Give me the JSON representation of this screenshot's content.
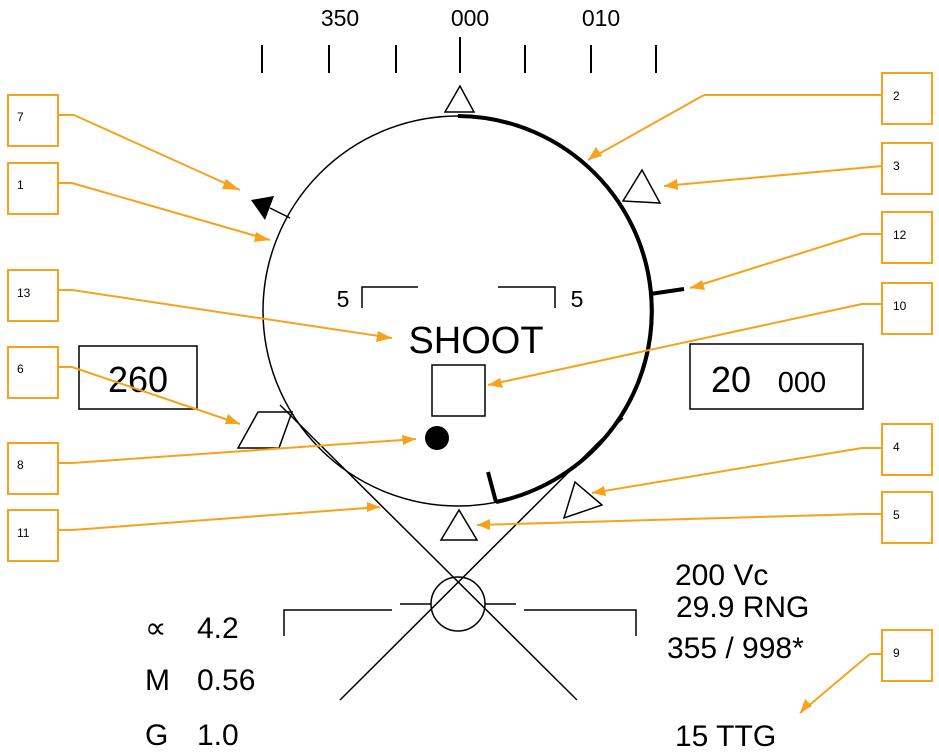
{
  "heading_scale": {
    "labels": [
      "350",
      "000",
      "010"
    ]
  },
  "airspeed_box": {
    "value": "260"
  },
  "altitude_box": {
    "value_major": "20",
    "value_minor": "000"
  },
  "shoot_cue": {
    "text": "SHOOT"
  },
  "range_bracket": {
    "left_label": "5",
    "right_label": "5"
  },
  "left_readouts": {
    "alpha_symbol": "∝",
    "alpha_value": "4.2",
    "mach_symbol": "M",
    "mach_value": "0.56",
    "g_symbol": "G",
    "g_value": "1.0"
  },
  "right_readouts": {
    "closure": "200 Vc",
    "range": "29.9 RNG",
    "bearing_range": "355 / 998*",
    "ttg": "15 TTG"
  },
  "callouts": [
    "1",
    "2",
    "3",
    "4",
    "5",
    "6",
    "7",
    "8",
    "9",
    "10",
    "11",
    "12",
    "13"
  ],
  "colors": {
    "callout_orange": "#f5a31b",
    "symbology": "#000000",
    "background": "#ffffff"
  }
}
